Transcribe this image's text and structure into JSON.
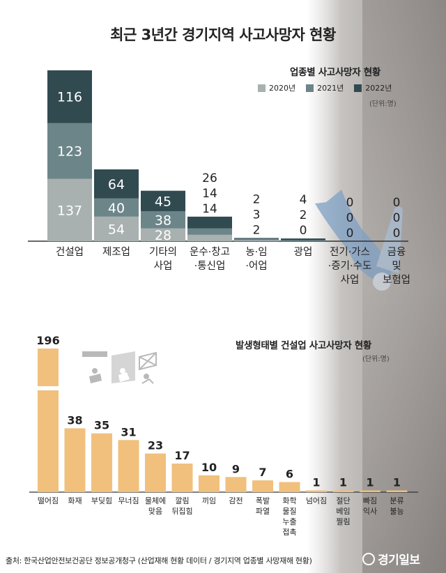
{
  "title": "최근 3년간 경기지역 사고사망자 현황",
  "source": "출처: 한국산업안전보건공단 정보공개청구 (산업재해 현황 데이터 / 경기지역 업종별 사망재해 현황)",
  "logo": "경기일보",
  "colors": {
    "y2020": "#a9b1b0",
    "y2021": "#6c8589",
    "y2022": "#304a50",
    "bar_orange": "#f0c07c",
    "background_gray": "#9c9794"
  },
  "chart_data": [
    {
      "type": "bar",
      "stacked": true,
      "title": "업종별 사고사망자 현황",
      "unit": "(단위:명)",
      "categories": [
        "건설업",
        "제조업",
        "기타의 사업",
        "운수·창고 ·통신업",
        "농·임 ·어업",
        "광업",
        "전기·가스 ·증기·수도 사업",
        "금융 및 보험업"
      ],
      "series": [
        {
          "name": "2020년",
          "values": [
            137,
            54,
            28,
            14,
            2,
            0,
            0,
            0
          ]
        },
        {
          "name": "2021년",
          "values": [
            123,
            40,
            38,
            14,
            3,
            2,
            0,
            0
          ]
        },
        {
          "name": "2022년",
          "values": [
            116,
            64,
            45,
            26,
            2,
            4,
            0,
            0
          ]
        }
      ],
      "legend_position": "top-right"
    },
    {
      "type": "bar",
      "title": "발생형태별 건설업 사고사망자 현황",
      "unit": "(단위:명)",
      "categories": [
        "떨어짐",
        "화재",
        "부딪힘",
        "무너짐",
        "물체에 맞음",
        "깔림 뒤집힘",
        "끼임",
        "감전",
        "폭발 파열",
        "화학 물질 누출 접촉",
        "넘어짐",
        "절단 베임 찔림",
        "빠짐 익사",
        "분류 불능"
      ],
      "values": [
        196,
        38,
        35,
        31,
        23,
        17,
        10,
        9,
        7,
        6,
        1,
        1,
        1,
        1
      ],
      "broken_axis": true
    }
  ]
}
